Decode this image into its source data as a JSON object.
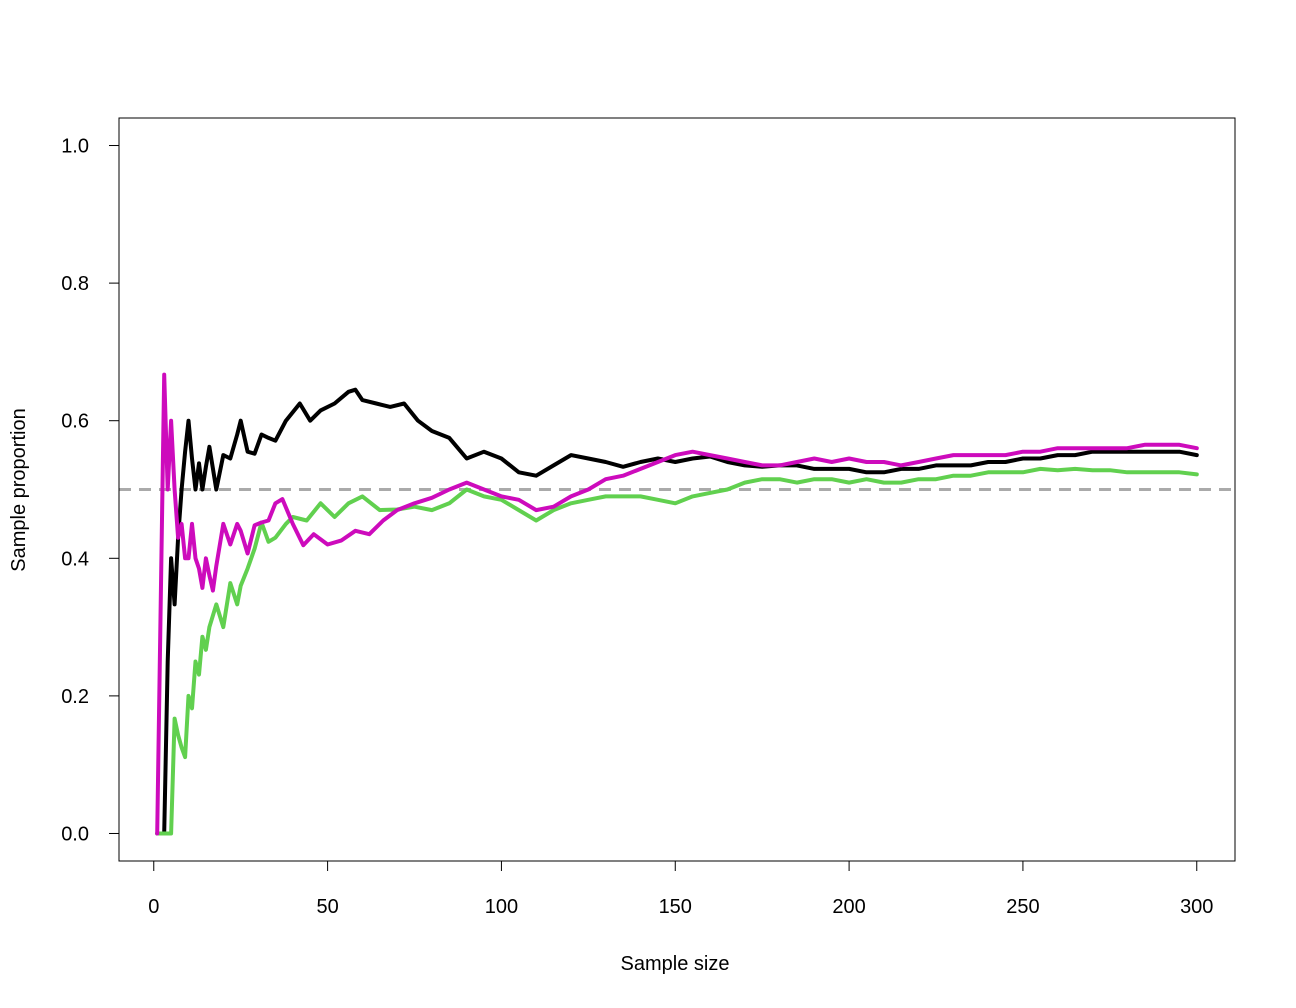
{
  "chart_data": {
    "type": "line",
    "title": "",
    "xlabel": "Sample size",
    "ylabel": "Sample proportion",
    "xlim": [
      -10,
      311
    ],
    "ylim": [
      -0.04,
      1.04
    ],
    "x_ticks": [
      0,
      50,
      100,
      150,
      200,
      250,
      300
    ],
    "y_ticks": [
      "0.0",
      "0.2",
      "0.4",
      "0.6",
      "0.8",
      "1.0"
    ],
    "grid": false,
    "legend": "none",
    "reference_line": {
      "y": 0.5,
      "style": "dashed",
      "color": "#AAAAAA"
    },
    "series": [
      {
        "color": "#000000",
        "points": [
          [
            1,
            0
          ],
          [
            2,
            0
          ],
          [
            3,
            0
          ],
          [
            4,
            0.25
          ],
          [
            5,
            0.4
          ],
          [
            6,
            0.333
          ],
          [
            7,
            0.43
          ],
          [
            8,
            0.5
          ],
          [
            9,
            0.555
          ],
          [
            10,
            0.6
          ],
          [
            11,
            0.545
          ],
          [
            12,
            0.5
          ],
          [
            13,
            0.538
          ],
          [
            14,
            0.5
          ],
          [
            15,
            0.533
          ],
          [
            16,
            0.562
          ],
          [
            18,
            0.5
          ],
          [
            20,
            0.55
          ],
          [
            22,
            0.545
          ],
          [
            24,
            0.58
          ],
          [
            25,
            0.6
          ],
          [
            27,
            0.555
          ],
          [
            29,
            0.552
          ],
          [
            31,
            0.58
          ],
          [
            33,
            0.575
          ],
          [
            35,
            0.571
          ],
          [
            38,
            0.6
          ],
          [
            42,
            0.625
          ],
          [
            45,
            0.6
          ],
          [
            48,
            0.615
          ],
          [
            52,
            0.625
          ],
          [
            56,
            0.642
          ],
          [
            58,
            0.645
          ],
          [
            60,
            0.63
          ],
          [
            64,
            0.625
          ],
          [
            68,
            0.62
          ],
          [
            72,
            0.625
          ],
          [
            76,
            0.6
          ],
          [
            80,
            0.585
          ],
          [
            85,
            0.575
          ],
          [
            90,
            0.545
          ],
          [
            95,
            0.555
          ],
          [
            100,
            0.545
          ],
          [
            105,
            0.525
          ],
          [
            110,
            0.52
          ],
          [
            115,
            0.535
          ],
          [
            120,
            0.55
          ],
          [
            125,
            0.545
          ],
          [
            130,
            0.54
          ],
          [
            135,
            0.533
          ],
          [
            140,
            0.54
          ],
          [
            145,
            0.545
          ],
          [
            150,
            0.54
          ],
          [
            155,
            0.545
          ],
          [
            160,
            0.548
          ],
          [
            165,
            0.54
          ],
          [
            170,
            0.535
          ],
          [
            175,
            0.533
          ],
          [
            180,
            0.535
          ],
          [
            185,
            0.535
          ],
          [
            190,
            0.53
          ],
          [
            195,
            0.53
          ],
          [
            200,
            0.53
          ],
          [
            205,
            0.525
          ],
          [
            210,
            0.525
          ],
          [
            215,
            0.53
          ],
          [
            220,
            0.53
          ],
          [
            225,
            0.535
          ],
          [
            230,
            0.535
          ],
          [
            235,
            0.535
          ],
          [
            240,
            0.54
          ],
          [
            245,
            0.54
          ],
          [
            250,
            0.545
          ],
          [
            255,
            0.545
          ],
          [
            260,
            0.55
          ],
          [
            265,
            0.55
          ],
          [
            270,
            0.555
          ],
          [
            275,
            0.555
          ],
          [
            280,
            0.555
          ],
          [
            285,
            0.555
          ],
          [
            290,
            0.555
          ],
          [
            295,
            0.555
          ],
          [
            300,
            0.55
          ]
        ]
      },
      {
        "color": "#61D04F",
        "points": [
          [
            1,
            0
          ],
          [
            2,
            0
          ],
          [
            3,
            0
          ],
          [
            4,
            0
          ],
          [
            5,
            0
          ],
          [
            6,
            0.167
          ],
          [
            7,
            0.143
          ],
          [
            8,
            0.125
          ],
          [
            9,
            0.111
          ],
          [
            10,
            0.2
          ],
          [
            11,
            0.182
          ],
          [
            12,
            0.25
          ],
          [
            13,
            0.231
          ],
          [
            14,
            0.286
          ],
          [
            15,
            0.267
          ],
          [
            16,
            0.3
          ],
          [
            18,
            0.333
          ],
          [
            20,
            0.3
          ],
          [
            22,
            0.364
          ],
          [
            24,
            0.333
          ],
          [
            25,
            0.36
          ],
          [
            27,
            0.385
          ],
          [
            29,
            0.414
          ],
          [
            31,
            0.452
          ],
          [
            33,
            0.424
          ],
          [
            35,
            0.43
          ],
          [
            38,
            0.45
          ],
          [
            40,
            0.46
          ],
          [
            44,
            0.455
          ],
          [
            48,
            0.48
          ],
          [
            52,
            0.46
          ],
          [
            56,
            0.48
          ],
          [
            60,
            0.49
          ],
          [
            65,
            0.47
          ],
          [
            70,
            0.471
          ],
          [
            75,
            0.475
          ],
          [
            80,
            0.47
          ],
          [
            85,
            0.48
          ],
          [
            90,
            0.5
          ],
          [
            95,
            0.49
          ],
          [
            100,
            0.485
          ],
          [
            105,
            0.47
          ],
          [
            110,
            0.455
          ],
          [
            115,
            0.47
          ],
          [
            120,
            0.48
          ],
          [
            125,
            0.485
          ],
          [
            130,
            0.49
          ],
          [
            135,
            0.49
          ],
          [
            140,
            0.49
          ],
          [
            145,
            0.485
          ],
          [
            150,
            0.48
          ],
          [
            155,
            0.49
          ],
          [
            160,
            0.495
          ],
          [
            165,
            0.5
          ],
          [
            170,
            0.51
          ],
          [
            175,
            0.515
          ],
          [
            180,
            0.515
          ],
          [
            185,
            0.51
          ],
          [
            190,
            0.515
          ],
          [
            195,
            0.515
          ],
          [
            200,
            0.51
          ],
          [
            205,
            0.515
          ],
          [
            210,
            0.51
          ],
          [
            215,
            0.51
          ],
          [
            220,
            0.515
          ],
          [
            225,
            0.515
          ],
          [
            230,
            0.52
          ],
          [
            235,
            0.52
          ],
          [
            240,
            0.525
          ],
          [
            245,
            0.525
          ],
          [
            250,
            0.525
          ],
          [
            255,
            0.53
          ],
          [
            260,
            0.528
          ],
          [
            265,
            0.53
          ],
          [
            270,
            0.528
          ],
          [
            275,
            0.528
          ],
          [
            280,
            0.525
          ],
          [
            285,
            0.525
          ],
          [
            290,
            0.525
          ],
          [
            295,
            0.525
          ],
          [
            300,
            0.522
          ]
        ]
      },
      {
        "color": "#CD0BBC",
        "points": [
          [
            1,
            0
          ],
          [
            2,
            0.333
          ],
          [
            3,
            0.667
          ],
          [
            4,
            0.5
          ],
          [
            5,
            0.6
          ],
          [
            6,
            0.5
          ],
          [
            7,
            0.43
          ],
          [
            8,
            0.45
          ],
          [
            9,
            0.4
          ],
          [
            10,
            0.4
          ],
          [
            11,
            0.45
          ],
          [
            12,
            0.4
          ],
          [
            13,
            0.385
          ],
          [
            14,
            0.357
          ],
          [
            15,
            0.4
          ],
          [
            16,
            0.375
          ],
          [
            17,
            0.353
          ],
          [
            18,
            0.389
          ],
          [
            20,
            0.45
          ],
          [
            22,
            0.42
          ],
          [
            24,
            0.45
          ],
          [
            25,
            0.44
          ],
          [
            27,
            0.407
          ],
          [
            29,
            0.448
          ],
          [
            31,
            0.452
          ],
          [
            33,
            0.455
          ],
          [
            35,
            0.48
          ],
          [
            37,
            0.486
          ],
          [
            40,
            0.45
          ],
          [
            43,
            0.419
          ],
          [
            46,
            0.435
          ],
          [
            50,
            0.42
          ],
          [
            54,
            0.426
          ],
          [
            58,
            0.44
          ],
          [
            62,
            0.435
          ],
          [
            66,
            0.455
          ],
          [
            70,
            0.47
          ],
          [
            75,
            0.48
          ],
          [
            80,
            0.488
          ],
          [
            85,
            0.5
          ],
          [
            90,
            0.51
          ],
          [
            95,
            0.5
          ],
          [
            100,
            0.49
          ],
          [
            105,
            0.485
          ],
          [
            110,
            0.47
          ],
          [
            115,
            0.475
          ],
          [
            120,
            0.49
          ],
          [
            125,
            0.5
          ],
          [
            130,
            0.515
          ],
          [
            135,
            0.52
          ],
          [
            140,
            0.53
          ],
          [
            145,
            0.54
          ],
          [
            150,
            0.55
          ],
          [
            155,
            0.555
          ],
          [
            160,
            0.55
          ],
          [
            165,
            0.545
          ],
          [
            170,
            0.54
          ],
          [
            175,
            0.535
          ],
          [
            180,
            0.535
          ],
          [
            185,
            0.54
          ],
          [
            190,
            0.545
          ],
          [
            195,
            0.54
          ],
          [
            200,
            0.545
          ],
          [
            205,
            0.54
          ],
          [
            210,
            0.54
          ],
          [
            215,
            0.535
          ],
          [
            220,
            0.54
          ],
          [
            225,
            0.545
          ],
          [
            230,
            0.55
          ],
          [
            235,
            0.55
          ],
          [
            240,
            0.55
          ],
          [
            245,
            0.55
          ],
          [
            250,
            0.555
          ],
          [
            255,
            0.555
          ],
          [
            260,
            0.56
          ],
          [
            265,
            0.56
          ],
          [
            270,
            0.56
          ],
          [
            275,
            0.56
          ],
          [
            280,
            0.56
          ],
          [
            285,
            0.565
          ],
          [
            290,
            0.565
          ],
          [
            295,
            0.565
          ],
          [
            300,
            0.56
          ]
        ]
      }
    ]
  }
}
